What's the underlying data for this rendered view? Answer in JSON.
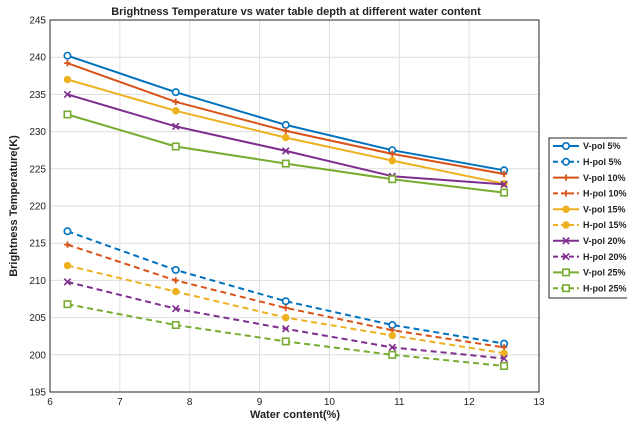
{
  "chart_data": {
    "type": "line",
    "title": "Brightness Temperature vs water table depth at different water content",
    "xlabel": "Water content(%)",
    "ylabel": "Brightness Temperature(K)",
    "xlim": [
      6,
      13
    ],
    "ylim": [
      195,
      245
    ],
    "xticks": [
      "6",
      "7",
      "8",
      "9",
      "10",
      "11",
      "12",
      "13"
    ],
    "yticks": [
      "195",
      "200",
      "205",
      "210",
      "215",
      "220",
      "225",
      "230",
      "235",
      "240",
      "245"
    ],
    "grid": true,
    "legend_placement": "right",
    "x": [
      6.25,
      7.8,
      9.375,
      10.9,
      12.5
    ],
    "series": [
      {
        "name": "V-pol 5%",
        "values": [
          240.2,
          235.3,
          230.9,
          227.5,
          224.8
        ],
        "color": "#0072BD",
        "dash": false,
        "marker": "circle"
      },
      {
        "name": "H-pol 5%",
        "values": [
          216.6,
          211.4,
          207.2,
          204.0,
          201.5
        ],
        "color": "#0072BD",
        "dash": true,
        "marker": "circle"
      },
      {
        "name": "V-pol 10%",
        "values": [
          239.2,
          234.0,
          230.1,
          227.0,
          224.3
        ],
        "color": "#D95319",
        "dash": false,
        "marker": "plus"
      },
      {
        "name": "H-pol 10%",
        "values": [
          214.8,
          210.0,
          206.3,
          203.3,
          201.0
        ],
        "color": "#D95319",
        "dash": true,
        "marker": "plus"
      },
      {
        "name": "V-pol 15%",
        "values": [
          237.0,
          232.8,
          229.2,
          226.1,
          223.0
        ],
        "color": "#EDB120",
        "dash": false,
        "marker": "dot"
      },
      {
        "name": "H-pol 15%",
        "values": [
          212.0,
          208.5,
          205.0,
          202.6,
          200.2
        ],
        "color": "#EDB120",
        "dash": true,
        "marker": "dot"
      },
      {
        "name": "V-pol 20%",
        "values": [
          235.0,
          230.7,
          227.4,
          224.0,
          222.9
        ],
        "color": "#7E2F8E",
        "dash": false,
        "marker": "x"
      },
      {
        "name": "H-pol 20%",
        "values": [
          209.8,
          206.2,
          203.5,
          201.0,
          199.5
        ],
        "color": "#7E2F8E",
        "dash": true,
        "marker": "x"
      },
      {
        "name": "V-pol 25%",
        "values": [
          232.3,
          228.0,
          225.7,
          223.6,
          221.8
        ],
        "color": "#77AC30",
        "dash": false,
        "marker": "square"
      },
      {
        "name": "H-pol 25%",
        "values": [
          206.8,
          204.0,
          201.8,
          200.0,
          198.5
        ],
        "color": "#77AC30",
        "dash": true,
        "marker": "square"
      }
    ]
  }
}
